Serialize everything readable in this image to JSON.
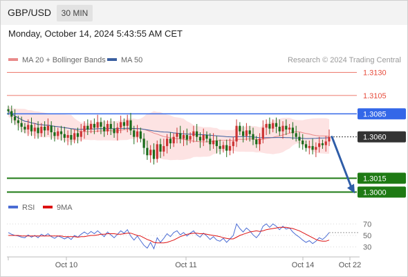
{
  "header": {
    "symbol": "GBP/USD",
    "timeframe": "30 MIN",
    "datetime": "Monday, October 14, 2024 5:43:55 AM CET"
  },
  "legend": {
    "ma20_label": "MA 20 + Bollinger Bands",
    "ma50_label": "MA 50",
    "copyright": "Research © 2024 Trading Central"
  },
  "colors": {
    "resistance": "#e74c3c",
    "pivot": "#3367e8",
    "support": "#1e7a14",
    "current": "#333333",
    "ma20": "#e98a8a",
    "ma50": "#3a5fa0",
    "bollinger_fill": "#fde3e3",
    "candle_up": "#cc3333",
    "candle_down": "#1a6b1a",
    "arrow": "#2f5da8",
    "rsi": "#4a6cd4",
    "rsi_ma": "#dd1111"
  },
  "chart_data": [
    {
      "type": "candlestick",
      "title": "GBP/USD",
      "ylim": [
        1.2995,
        1.3135
      ],
      "x_tick_labels": [
        "Oct 10",
        "Oct 11",
        "Oct 14",
        "Oct 22"
      ],
      "levels": [
        {
          "label": "1.3130",
          "value": 1.313,
          "kind": "resistance"
        },
        {
          "label": "1.3105",
          "value": 1.3105,
          "kind": "resistance"
        },
        {
          "label": "1.3085",
          "value": 1.3085,
          "kind": "pivot"
        },
        {
          "label": "1.3060",
          "value": 1.306,
          "kind": "current"
        },
        {
          "label": "1.3015",
          "value": 1.3015,
          "kind": "support"
        },
        {
          "label": "1.3000",
          "value": 1.3,
          "kind": "support"
        }
      ],
      "close": [
        1.3088,
        1.3082,
        1.3078,
        1.3075,
        1.3071,
        1.3068,
        1.3073,
        1.3066,
        1.307,
        1.3064,
        1.3071,
        1.3067,
        1.3072,
        1.3065,
        1.3061,
        1.3066,
        1.3063,
        1.3059,
        1.3062,
        1.3057,
        1.3064,
        1.306,
        1.3066,
        1.3072,
        1.3068,
        1.3074,
        1.307,
        1.3076,
        1.3071,
        1.3066,
        1.3074,
        1.3069,
        1.3064,
        1.307,
        1.3076,
        1.3072,
        1.3078,
        1.3067,
        1.306,
        1.3066,
        1.3058,
        1.3048,
        1.304,
        1.3046,
        1.3036,
        1.3052,
        1.3044,
        1.305,
        1.3058,
        1.3053,
        1.306,
        1.3064,
        1.3058,
        1.3062,
        1.3057,
        1.3061,
        1.3066,
        1.306,
        1.3056,
        1.3062,
        1.3058,
        1.3052,
        1.3056,
        1.305,
        1.3047,
        1.3051,
        1.3045,
        1.305,
        1.3055,
        1.3072,
        1.3066,
        1.3061,
        1.3067,
        1.3063,
        1.3057,
        1.3052,
        1.3058,
        1.307,
        1.3074,
        1.3069,
        1.3075,
        1.3071,
        1.3066,
        1.3072,
        1.3068,
        1.307,
        1.3064,
        1.306,
        1.3056,
        1.3052,
        1.3048,
        1.305,
        1.3046,
        1.3049,
        1.3053,
        1.3051,
        1.3055,
        1.306
      ],
      "open": [
        1.309,
        1.3088,
        1.3082,
        1.3078,
        1.3075,
        1.3071,
        1.3068,
        1.3073,
        1.3066,
        1.307,
        1.3064,
        1.3071,
        1.3067,
        1.3072,
        1.3065,
        1.3061,
        1.3066,
        1.3063,
        1.3059,
        1.3062,
        1.3057,
        1.3064,
        1.306,
        1.3066,
        1.3072,
        1.3068,
        1.3074,
        1.307,
        1.3076,
        1.3071,
        1.3066,
        1.3074,
        1.3069,
        1.3064,
        1.307,
        1.3076,
        1.3072,
        1.3078,
        1.3067,
        1.306,
        1.3066,
        1.3058,
        1.3048,
        1.304,
        1.3046,
        1.3036,
        1.3052,
        1.3044,
        1.305,
        1.3058,
        1.3053,
        1.306,
        1.3064,
        1.3058,
        1.3062,
        1.3057,
        1.3061,
        1.3066,
        1.306,
        1.3056,
        1.3062,
        1.3058,
        1.3052,
        1.3056,
        1.305,
        1.3047,
        1.3051,
        1.3045,
        1.305,
        1.3055,
        1.3072,
        1.3066,
        1.3061,
        1.3067,
        1.3063,
        1.3057,
        1.3052,
        1.3058,
        1.307,
        1.3074,
        1.3069,
        1.3075,
        1.3071,
        1.3066,
        1.3072,
        1.3068,
        1.307,
        1.3064,
        1.306,
        1.3056,
        1.3052,
        1.3048,
        1.305,
        1.3046,
        1.3049,
        1.3053,
        1.3051,
        1.3055
      ]
    },
    {
      "type": "line",
      "series": [
        {
          "name": "RSI",
          "values": [
            55,
            52,
            50,
            49,
            47,
            46,
            51,
            47,
            50,
            46,
            52,
            49,
            53,
            48,
            45,
            49,
            47,
            44,
            47,
            43,
            50,
            47,
            52,
            56,
            52,
            57,
            53,
            58,
            53,
            48,
            56,
            51,
            46,
            52,
            58,
            54,
            60,
            49,
            42,
            49,
            41,
            33,
            28,
            38,
            27,
            46,
            38,
            45,
            53,
            48,
            55,
            58,
            51,
            55,
            49,
            54,
            58,
            51,
            47,
            54,
            49,
            43,
            48,
            42,
            40,
            45,
            38,
            44,
            50,
            70,
            62,
            56,
            63,
            58,
            51,
            46,
            53,
            66,
            70,
            64,
            70,
            66,
            60,
            66,
            61,
            63,
            56,
            51,
            47,
            42,
            38,
            41,
            36,
            40,
            46,
            43,
            48,
            55
          ]
        },
        {
          "name": "9MA",
          "values": [
            50,
            50,
            50,
            50,
            49,
            49,
            49,
            49,
            49,
            49,
            49,
            49,
            49,
            49,
            49,
            49,
            49,
            48,
            48,
            48,
            48,
            47,
            48,
            48,
            49,
            50,
            50,
            51,
            52,
            52,
            53,
            53,
            53,
            52,
            52,
            53,
            54,
            54,
            52,
            50,
            49,
            46,
            43,
            41,
            38,
            37,
            37,
            37,
            38,
            40,
            42,
            45,
            48,
            50,
            52,
            53,
            54,
            54,
            53,
            53,
            52,
            51,
            50,
            49,
            48,
            46,
            45,
            44,
            44,
            47,
            50,
            52,
            54,
            56,
            57,
            58,
            57,
            58,
            60,
            61,
            62,
            63,
            64,
            64,
            64,
            63,
            62,
            60,
            58,
            55,
            52,
            49,
            46,
            43,
            41,
            40,
            40,
            42
          ]
        }
      ],
      "ylim": [
        20,
        80
      ],
      "y_tick_labels": [
        "70",
        "50",
        "30"
      ],
      "y_ticks": [
        70,
        50,
        30
      ]
    }
  ],
  "rsi_legend": {
    "rsi_label": "RSI",
    "ma_label": "9MA"
  }
}
